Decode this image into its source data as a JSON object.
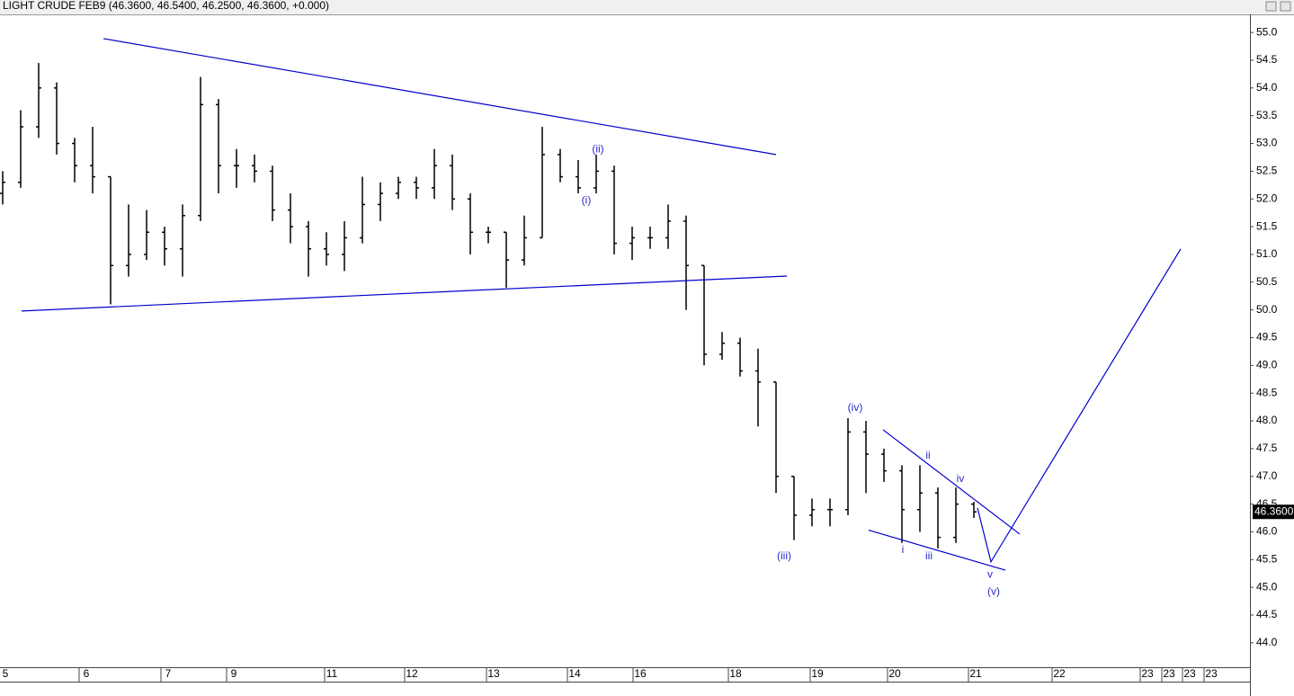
{
  "chart_data": {
    "type": "ohlc",
    "title": "LIGHT CRUDE FEB9 (46.3600, 46.5400, 46.2500, 46.3600, +0.000)",
    "color": "#000000",
    "line_color": "#0000cc",
    "open": [
      52.1,
      52.3,
      53.3,
      54.0,
      53.0,
      52.6,
      52.4,
      50.8,
      51.0,
      51.4,
      51.1,
      51.7,
      53.7,
      52.6,
      52.6,
      52.5,
      51.8,
      51.5,
      51.1,
      51.0,
      51.3,
      51.9,
      52.1,
      52.3,
      52.2,
      52.6,
      52.0,
      51.4,
      51.4,
      50.9,
      51.3,
      52.8,
      52.4,
      52.2,
      52.5,
      51.2,
      51.3,
      51.3,
      51.6,
      50.8,
      49.2,
      49.4,
      48.9,
      48.7,
      47.0,
      46.3,
      46.4,
      46.4,
      47.8,
      47.4,
      47.1,
      46.4,
      46.7,
      45.9,
      46.5
    ],
    "high": [
      52.5,
      53.6,
      54.45,
      54.1,
      53.1,
      53.3,
      52.4,
      51.9,
      51.8,
      51.5,
      51.9,
      54.2,
      53.8,
      52.9,
      52.8,
      52.6,
      52.1,
      51.6,
      51.4,
      51.6,
      52.4,
      52.3,
      52.4,
      52.4,
      52.9,
      52.8,
      52.1,
      51.5,
      51.4,
      51.7,
      53.3,
      52.9,
      52.7,
      52.8,
      52.6,
      51.5,
      51.5,
      51.9,
      51.7,
      50.8,
      49.6,
      49.5,
      49.3,
      48.7,
      47.0,
      46.6,
      46.6,
      48.05,
      48.0,
      47.5,
      47.2,
      47.2,
      46.8,
      46.8,
      46.54
    ],
    "low": [
      51.9,
      52.2,
      53.1,
      52.8,
      52.3,
      52.1,
      50.1,
      50.6,
      50.9,
      50.8,
      50.6,
      51.6,
      52.1,
      52.2,
      52.3,
      51.6,
      51.2,
      50.6,
      50.8,
      50.7,
      51.2,
      51.6,
      52.0,
      52.0,
      52.0,
      51.8,
      51.0,
      51.2,
      50.4,
      50.8,
      51.3,
      52.3,
      52.1,
      52.1,
      51.0,
      50.9,
      51.1,
      51.1,
      50.0,
      49.0,
      49.1,
      48.8,
      47.9,
      46.7,
      45.85,
      46.1,
      46.1,
      46.3,
      46.7,
      46.9,
      45.8,
      46.0,
      45.7,
      45.8,
      46.25
    ],
    "close": [
      52.3,
      53.3,
      54.0,
      53.0,
      52.6,
      52.4,
      50.8,
      51.0,
      51.4,
      51.1,
      51.7,
      53.7,
      52.6,
      52.6,
      52.5,
      51.8,
      51.5,
      51.1,
      51.0,
      51.3,
      51.9,
      52.1,
      52.3,
      52.2,
      52.6,
      52.0,
      51.4,
      51.4,
      50.9,
      51.3,
      52.8,
      52.4,
      52.2,
      52.5,
      51.2,
      51.3,
      51.3,
      51.6,
      50.8,
      49.2,
      49.4,
      48.9,
      48.7,
      47.0,
      46.3,
      46.4,
      46.4,
      47.8,
      47.4,
      47.1,
      46.4,
      46.7,
      45.9,
      46.5,
      46.36
    ],
    "last_price": {
      "value": 46.36,
      "label": "46.3600"
    },
    "xlim": [
      -0.15,
      69.35
    ],
    "ylim": [
      43.56,
      55.31
    ],
    "xticks": [
      {
        "value": 0.15,
        "label": "5"
      },
      {
        "value": 4.65,
        "label": "6"
      },
      {
        "value": 9.2,
        "label": "7"
      },
      {
        "value": 12.85,
        "label": "9"
      },
      {
        "value": 18.3,
        "label": "11"
      },
      {
        "value": 22.75,
        "label": "12"
      },
      {
        "value": 27.3,
        "label": "13"
      },
      {
        "value": 31.8,
        "label": "14"
      },
      {
        "value": 35.45,
        "label": "16"
      },
      {
        "value": 40.75,
        "label": "18"
      },
      {
        "value": 45.3,
        "label": "19"
      },
      {
        "value": 49.6,
        "label": "20"
      },
      {
        "value": 54.1,
        "label": "21"
      },
      {
        "value": 58.75,
        "label": "22"
      },
      {
        "value": 63.65,
        "label": "23"
      },
      {
        "value": 64.85,
        "label": "23"
      },
      {
        "value": 66.0,
        "label": "23"
      },
      {
        "value": 67.2,
        "label": "23"
      }
    ],
    "yticks": [
      {
        "value": 44,
        "label": "44.0"
      },
      {
        "value": 44.5,
        "label": "44.5"
      },
      {
        "value": 45,
        "label": "45.0"
      },
      {
        "value": 45.5,
        "label": "45.5"
      },
      {
        "value": 46,
        "label": "46.0"
      },
      {
        "value": 46.5,
        "label": "46.5"
      },
      {
        "value": 47,
        "label": "47.0"
      },
      {
        "value": 47.5,
        "label": "47.5"
      },
      {
        "value": 48,
        "label": "48.0"
      },
      {
        "value": 48.5,
        "label": "48.5"
      },
      {
        "value": 49,
        "label": "49.0"
      },
      {
        "value": 49.5,
        "label": "49.5"
      },
      {
        "value": 50,
        "label": "50.0"
      },
      {
        "value": 50.5,
        "label": "50.5"
      },
      {
        "value": 51,
        "label": "51.0"
      },
      {
        "value": 51.5,
        "label": "51.5"
      },
      {
        "value": 52,
        "label": "52.0"
      },
      {
        "value": 52.5,
        "label": "52.5"
      },
      {
        "value": 53,
        "label": "53.0"
      },
      {
        "value": 53.5,
        "label": "53.5"
      },
      {
        "value": 54,
        "label": "54.0"
      },
      {
        "value": 54.5,
        "label": "54.5"
      },
      {
        "value": 55,
        "label": "55.0"
      }
    ],
    "trendlines": [
      {
        "x": [
          5.6,
          43.0
        ],
        "y": [
          54.89,
          52.8
        ]
      },
      {
        "x": [
          1.05,
          43.6
        ],
        "y": [
          49.98,
          50.61
        ]
      },
      {
        "x": [
          48.95,
          56.55
        ],
        "y": [
          47.84,
          45.96
        ]
      },
      {
        "x": [
          48.15,
          55.75
        ],
        "y": [
          46.03,
          45.31
        ]
      },
      {
        "x": [
          54.2,
          54.95,
          65.5
        ],
        "y": [
          46.43,
          45.46,
          51.1
        ]
      }
    ],
    "annotations": [
      {
        "text": "(ii)",
        "x": 33.1,
        "y": 52.89
      },
      {
        "text": "(i)",
        "x": 32.45,
        "y": 51.97
      },
      {
        "text": "(iii)",
        "x": 43.45,
        "y": 45.56
      },
      {
        "text": "(iv)",
        "x": 47.4,
        "y": 48.23
      },
      {
        "text": "(v)",
        "x": 55.1,
        "y": 44.92
      },
      {
        "text": "ii",
        "x": 51.45,
        "y": 47.37
      },
      {
        "text": "i",
        "x": 50.05,
        "y": 45.67
      },
      {
        "text": "iii",
        "x": 51.5,
        "y": 45.56
      },
      {
        "text": "iv",
        "x": 53.25,
        "y": 46.95
      },
      {
        "text": "v",
        "x": 54.9,
        "y": 45.22
      }
    ]
  }
}
